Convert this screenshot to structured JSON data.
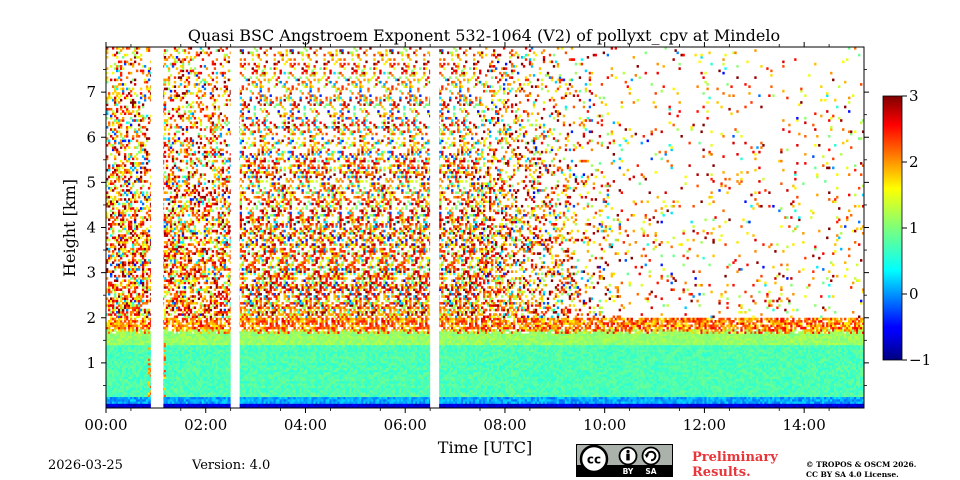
{
  "chart_data": {
    "type": "heatmap",
    "title": "Quasi BSC Angstroem Exponent 532-1064 (V2) of pollyxt_cpv at Mindelo",
    "xlabel": "Time [UTC]",
    "ylabel": "Height [km]",
    "xlim_hours": [
      0,
      15.2
    ],
    "ylim_km": [
      0,
      8
    ],
    "x_ticks": [
      {
        "v": 0,
        "label": "00:00"
      },
      {
        "v": 2,
        "label": "02:00"
      },
      {
        "v": 4,
        "label": "04:00"
      },
      {
        "v": 6,
        "label": "06:00"
      },
      {
        "v": 8,
        "label": "08:00"
      },
      {
        "v": 10,
        "label": "10:00"
      },
      {
        "v": 12,
        "label": "12:00"
      },
      {
        "v": 14,
        "label": "14:00"
      }
    ],
    "y_ticks": [
      {
        "v": 1,
        "label": "1"
      },
      {
        "v": 2,
        "label": "2"
      },
      {
        "v": 3,
        "label": "3"
      },
      {
        "v": 4,
        "label": "4"
      },
      {
        "v": 5,
        "label": "5"
      },
      {
        "v": 6,
        "label": "6"
      },
      {
        "v": 7,
        "label": "7"
      }
    ],
    "colorbar": {
      "min": -1,
      "max": 3,
      "colormap": "jet",
      "ticks": [
        {
          "v": -1,
          "label": "−1"
        },
        {
          "v": 0,
          "label": "0"
        },
        {
          "v": 1,
          "label": "1"
        },
        {
          "v": 2,
          "label": "2"
        },
        {
          "v": 3,
          "label": "3"
        }
      ]
    },
    "data_gaps_hours": [
      [
        0.9,
        1.15
      ],
      [
        2.5,
        2.68
      ],
      [
        6.5,
        6.68
      ]
    ],
    "layers": {
      "boundary_layer_top_km": 1.7,
      "boundary_layer_value": 0.8,
      "noise_region_value_range": [
        1.5,
        2.6
      ],
      "near_surface_value": -0.8
    }
  },
  "footer": {
    "date": "2026-03-25",
    "version": "Version: 4.0",
    "cc_label_by": "BY",
    "cc_label_sa": "SA",
    "prelim_line1": "Preliminary",
    "prelim_line2": "Results.",
    "copyright_line1": "© TROPOS & OSCM 2026.",
    "copyright_line2": "CC BY SA 4.0 License."
  }
}
